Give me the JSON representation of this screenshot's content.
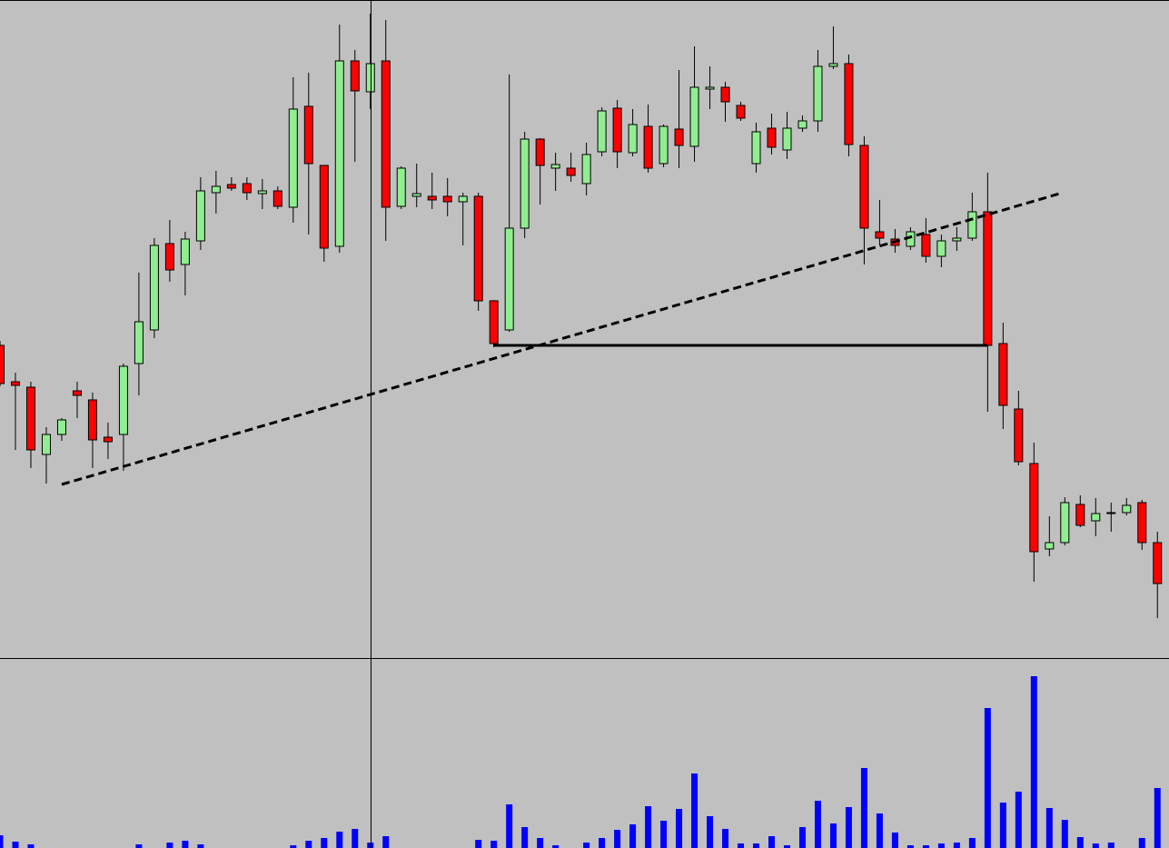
{
  "chart_data": [
    {
      "type": "candlestick",
      "up_color": "#90ee90",
      "down_color": "#ff0000",
      "ylim": [
        0,
        724
      ],
      "open": [
        344,
        304,
        298,
        224,
        246,
        294,
        284,
        243,
        246,
        324,
        361,
        456,
        433,
        459,
        512,
        521,
        522,
        511,
        514,
        496,
        607,
        542,
        453,
        657,
        623,
        657,
        497,
        508,
        508,
        508,
        502,
        508,
        393,
        361,
        473,
        571,
        539,
        539,
        522,
        557,
        605,
        556,
        585,
        544,
        582,
        563,
        626,
        628,
        608,
        544,
        583,
        559,
        583,
        591,
        651,
        654,
        564,
        469,
        461,
        453,
        466,
        442,
        459,
        462,
        491,
        346,
        274,
        214,
        120,
        127,
        169,
        151,
        159,
        160,
        171,
        127
      ],
      "high": [
        349,
        314,
        304,
        254,
        264,
        304,
        292,
        259,
        324,
        424,
        462,
        482,
        469,
        529,
        536,
        529,
        529,
        527,
        519,
        639,
        644,
        542,
        697,
        669,
        709,
        702,
        541,
        544,
        534,
        528,
        512,
        512,
        394,
        642,
        579,
        572,
        556,
        556,
        567,
        606,
        614,
        604,
        609,
        587,
        647,
        673,
        651,
        634,
        612,
        589,
        599,
        601,
        597,
        669,
        695,
        664,
        574,
        504,
        472,
        474,
        484,
        466,
        474,
        512,
        534,
        369,
        294,
        237,
        156,
        177,
        179,
        176,
        171,
        176,
        174,
        139
      ],
      "low": [
        299,
        229,
        209,
        192,
        239,
        264,
        209,
        219,
        206,
        289,
        352,
        414,
        399,
        449,
        489,
        514,
        504,
        494,
        494,
        479,
        466,
        436,
        446,
        546,
        604,
        459,
        494,
        496,
        494,
        486,
        454,
        382,
        342,
        359,
        462,
        499,
        514,
        524,
        509,
        552,
        539,
        552,
        534,
        540,
        539,
        546,
        604,
        590,
        591,
        534,
        554,
        549,
        579,
        579,
        648,
        552,
        433,
        454,
        446,
        449,
        435,
        430,
        448,
        459,
        271,
        252,
        212,
        84,
        112,
        124,
        144,
        134,
        139,
        157,
        119,
        44
      ],
      "close": [
        302,
        300,
        229,
        246,
        262,
        289,
        240,
        238,
        321,
        370,
        454,
        427,
        461,
        514,
        519,
        517,
        512,
        514,
        497,
        604,
        544,
        451,
        657,
        624,
        654,
        496,
        539,
        511,
        504,
        502,
        508,
        393,
        346,
        473,
        571,
        542,
        543,
        531,
        554,
        602,
        557,
        587,
        539,
        585,
        564,
        628,
        628,
        612,
        594,
        579,
        562,
        583,
        591,
        651,
        654,
        565,
        473,
        462,
        454,
        469,
        442,
        459,
        462,
        491,
        344,
        278,
        216,
        117,
        127,
        171,
        146,
        159,
        160,
        168,
        127,
        82
      ]
    },
    {
      "type": "bar",
      "color": "#0000ff",
      "ylim": [
        0,
        209
      ],
      "values": [
        14,
        7,
        4,
        0,
        0,
        0,
        0,
        0,
        0,
        4,
        0,
        6,
        8,
        4,
        0,
        0,
        0,
        0,
        0,
        3,
        8,
        11,
        18,
        21,
        6,
        13,
        0,
        0,
        0,
        0,
        0,
        9,
        8,
        48,
        23,
        11,
        3,
        0,
        6,
        11,
        20,
        26,
        46,
        30,
        43,
        82,
        35,
        21,
        5,
        5,
        13,
        3,
        23,
        52,
        27,
        45,
        88,
        38,
        17,
        3,
        3,
        5,
        6,
        11,
        154,
        50,
        62,
        189,
        44,
        31,
        12,
        5,
        6,
        0,
        11,
        66
      ]
    }
  ]
}
